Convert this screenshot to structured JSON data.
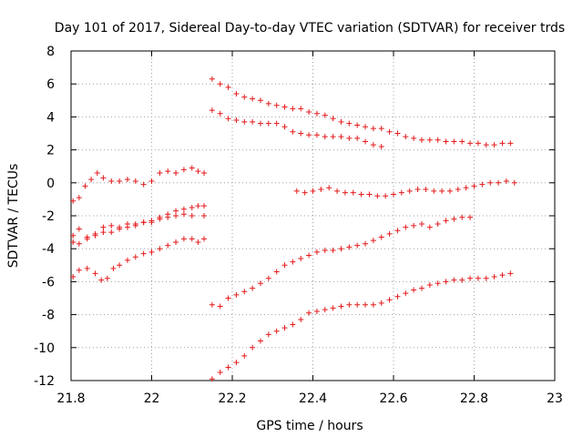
{
  "chart_data": {
    "type": "scatter",
    "title": "Day 101 of 2017, Sidereal Day-to-day VTEC variation (SDTVAR) for receiver trds",
    "xlabel": "GPS time / hours",
    "ylabel": "SDTVAR / TECUs",
    "xlim": [
      21.8,
      23.0
    ],
    "ylim": [
      -12,
      8
    ],
    "xticks": [
      21.8,
      22.0,
      22.2,
      22.4,
      22.6,
      22.8,
      23.0
    ],
    "xtick_labels": [
      "21.8",
      "22",
      "22.2",
      "22.4",
      "22.6",
      "22.8",
      "23"
    ],
    "yticks": [
      -12,
      -10,
      -8,
      -6,
      -4,
      -2,
      0,
      2,
      4,
      6,
      8
    ],
    "ytick_labels": [
      "-12",
      "-10",
      "-8",
      "-6",
      "-4",
      "-2",
      "0",
      "2",
      "4",
      "6",
      "8"
    ],
    "grid": true,
    "marker": "+",
    "color": "#e41a1c",
    "series": [
      {
        "name": "s1",
        "points": [
          [
            21.805,
            -1.1
          ],
          [
            21.82,
            -0.9
          ],
          [
            21.835,
            -0.2
          ],
          [
            21.85,
            0.2
          ],
          [
            21.865,
            0.6
          ],
          [
            21.88,
            0.3
          ],
          [
            21.9,
            0.1
          ],
          [
            21.92,
            0.1
          ],
          [
            21.94,
            0.2
          ],
          [
            21.96,
            0.1
          ],
          [
            21.98,
            -0.1
          ],
          [
            22.0,
            0.1
          ],
          [
            22.02,
            0.6
          ],
          [
            22.04,
            0.7
          ],
          [
            22.06,
            0.6
          ],
          [
            22.08,
            0.8
          ],
          [
            22.1,
            0.9
          ],
          [
            22.115,
            0.7
          ],
          [
            22.13,
            0.6
          ]
        ]
      },
      {
        "name": "s2",
        "points": [
          [
            21.805,
            -3.2
          ],
          [
            21.82,
            -2.8
          ],
          [
            21.84,
            -3.3
          ],
          [
            21.86,
            -3.1
          ],
          [
            21.88,
            -2.7
          ],
          [
            21.9,
            -2.6
          ],
          [
            21.92,
            -2.7
          ],
          [
            21.94,
            -2.5
          ],
          [
            21.96,
            -2.6
          ],
          [
            21.98,
            -2.4
          ],
          [
            22.0,
            -2.3
          ],
          [
            22.02,
            -2.2
          ],
          [
            22.04,
            -2.1
          ],
          [
            22.06,
            -2.0
          ],
          [
            22.08,
            -1.9
          ],
          [
            22.1,
            -2.0
          ],
          [
            22.13,
            -2.0
          ]
        ]
      },
      {
        "name": "s3",
        "points": [
          [
            21.805,
            -3.6
          ],
          [
            21.82,
            -3.7
          ],
          [
            21.84,
            -3.4
          ],
          [
            21.86,
            -3.2
          ],
          [
            21.88,
            -3.0
          ],
          [
            21.9,
            -3.0
          ],
          [
            21.92,
            -2.8
          ],
          [
            21.94,
            -2.7
          ],
          [
            21.96,
            -2.5
          ],
          [
            21.98,
            -2.4
          ],
          [
            22.0,
            -2.4
          ],
          [
            22.02,
            -2.1
          ],
          [
            22.04,
            -1.9
          ],
          [
            22.06,
            -1.7
          ],
          [
            22.08,
            -1.6
          ],
          [
            22.1,
            -1.5
          ],
          [
            22.115,
            -1.4
          ],
          [
            22.13,
            -1.4
          ]
        ]
      },
      {
        "name": "s4",
        "points": [
          [
            21.805,
            -5.7
          ],
          [
            21.82,
            -5.3
          ],
          [
            21.84,
            -5.2
          ],
          [
            21.86,
            -5.5
          ],
          [
            21.875,
            -5.9
          ],
          [
            21.89,
            -5.8
          ],
          [
            21.905,
            -5.2
          ],
          [
            21.92,
            -5.0
          ],
          [
            21.94,
            -4.7
          ],
          [
            21.96,
            -4.5
          ],
          [
            21.98,
            -4.3
          ],
          [
            22.0,
            -4.2
          ],
          [
            22.02,
            -4.0
          ],
          [
            22.04,
            -3.8
          ],
          [
            22.06,
            -3.6
          ],
          [
            22.08,
            -3.4
          ],
          [
            22.1,
            -3.4
          ],
          [
            22.115,
            -3.6
          ],
          [
            22.13,
            -3.4
          ]
        ]
      },
      {
        "name": "s5",
        "points": [
          [
            22.15,
            6.3
          ],
          [
            22.17,
            6.0
          ],
          [
            22.19,
            5.8
          ],
          [
            22.21,
            5.4
          ],
          [
            22.23,
            5.2
          ],
          [
            22.25,
            5.1
          ],
          [
            22.27,
            5.0
          ],
          [
            22.29,
            4.8
          ],
          [
            22.31,
            4.7
          ],
          [
            22.33,
            4.6
          ],
          [
            22.35,
            4.5
          ],
          [
            22.37,
            4.5
          ],
          [
            22.39,
            4.3
          ],
          [
            22.41,
            4.2
          ],
          [
            22.43,
            4.1
          ],
          [
            22.45,
            3.9
          ],
          [
            22.47,
            3.7
          ],
          [
            22.49,
            3.6
          ],
          [
            22.51,
            3.5
          ],
          [
            22.53,
            3.4
          ],
          [
            22.55,
            3.3
          ],
          [
            22.57,
            3.3
          ],
          [
            22.59,
            3.1
          ],
          [
            22.61,
            3.0
          ],
          [
            22.63,
            2.8
          ],
          [
            22.65,
            2.7
          ],
          [
            22.67,
            2.6
          ],
          [
            22.69,
            2.6
          ],
          [
            22.71,
            2.6
          ],
          [
            22.73,
            2.5
          ],
          [
            22.75,
            2.5
          ],
          [
            22.77,
            2.5
          ],
          [
            22.79,
            2.4
          ],
          [
            22.81,
            2.4
          ],
          [
            22.83,
            2.3
          ],
          [
            22.85,
            2.3
          ],
          [
            22.87,
            2.4
          ],
          [
            22.89,
            2.4
          ]
        ]
      },
      {
        "name": "s6",
        "points": [
          [
            22.15,
            4.4
          ],
          [
            22.17,
            4.2
          ],
          [
            22.19,
            3.9
          ],
          [
            22.21,
            3.8
          ],
          [
            22.23,
            3.7
          ],
          [
            22.25,
            3.7
          ],
          [
            22.27,
            3.6
          ],
          [
            22.29,
            3.6
          ],
          [
            22.31,
            3.6
          ],
          [
            22.33,
            3.4
          ],
          [
            22.35,
            3.1
          ],
          [
            22.37,
            3.0
          ],
          [
            22.39,
            2.9
          ],
          [
            22.41,
            2.9
          ],
          [
            22.43,
            2.8
          ],
          [
            22.45,
            2.8
          ],
          [
            22.47,
            2.8
          ],
          [
            22.49,
            2.7
          ],
          [
            22.51,
            2.7
          ],
          [
            22.53,
            2.5
          ],
          [
            22.55,
            2.3
          ],
          [
            22.57,
            2.2
          ]
        ]
      },
      {
        "name": "s7",
        "points": [
          [
            22.36,
            -0.5
          ],
          [
            22.38,
            -0.6
          ],
          [
            22.4,
            -0.5
          ],
          [
            22.42,
            -0.4
          ],
          [
            22.44,
            -0.3
          ],
          [
            22.46,
            -0.5
          ],
          [
            22.48,
            -0.6
          ],
          [
            22.5,
            -0.6
          ],
          [
            22.52,
            -0.7
          ],
          [
            22.54,
            -0.7
          ],
          [
            22.56,
            -0.8
          ],
          [
            22.58,
            -0.8
          ],
          [
            22.6,
            -0.7
          ],
          [
            22.62,
            -0.6
          ],
          [
            22.64,
            -0.5
          ],
          [
            22.66,
            -0.4
          ],
          [
            22.68,
            -0.4
          ],
          [
            22.7,
            -0.5
          ],
          [
            22.72,
            -0.5
          ],
          [
            22.74,
            -0.5
          ],
          [
            22.76,
            -0.4
          ],
          [
            22.78,
            -0.3
          ],
          [
            22.8,
            -0.2
          ],
          [
            22.82,
            -0.1
          ],
          [
            22.84,
            0.0
          ],
          [
            22.86,
            0.0
          ],
          [
            22.88,
            0.1
          ],
          [
            22.9,
            0.0
          ]
        ]
      },
      {
        "name": "s8",
        "points": [
          [
            22.15,
            -7.4
          ],
          [
            22.17,
            -7.5
          ],
          [
            22.19,
            -7.0
          ],
          [
            22.21,
            -6.8
          ],
          [
            22.23,
            -6.6
          ],
          [
            22.25,
            -6.4
          ],
          [
            22.27,
            -6.1
          ],
          [
            22.29,
            -5.8
          ],
          [
            22.31,
            -5.4
          ],
          [
            22.33,
            -5.0
          ],
          [
            22.35,
            -4.8
          ],
          [
            22.37,
            -4.6
          ],
          [
            22.39,
            -4.4
          ],
          [
            22.41,
            -4.2
          ],
          [
            22.43,
            -4.1
          ],
          [
            22.45,
            -4.1
          ],
          [
            22.47,
            -4.0
          ],
          [
            22.49,
            -3.9
          ],
          [
            22.51,
            -3.8
          ],
          [
            22.53,
            -3.7
          ],
          [
            22.55,
            -3.5
          ],
          [
            22.57,
            -3.3
          ],
          [
            22.59,
            -3.1
          ],
          [
            22.61,
            -2.9
          ],
          [
            22.63,
            -2.7
          ],
          [
            22.65,
            -2.6
          ],
          [
            22.67,
            -2.5
          ],
          [
            22.69,
            -2.7
          ],
          [
            22.71,
            -2.5
          ],
          [
            22.73,
            -2.3
          ],
          [
            22.75,
            -2.2
          ],
          [
            22.77,
            -2.1
          ],
          [
            22.79,
            -2.1
          ]
        ]
      },
      {
        "name": "s9",
        "points": [
          [
            22.15,
            -11.9
          ],
          [
            22.17,
            -11.5
          ],
          [
            22.19,
            -11.2
          ],
          [
            22.21,
            -10.9
          ],
          [
            22.23,
            -10.5
          ],
          [
            22.25,
            -10.0
          ],
          [
            22.27,
            -9.6
          ],
          [
            22.29,
            -9.2
          ],
          [
            22.31,
            -9.0
          ],
          [
            22.33,
            -8.8
          ],
          [
            22.35,
            -8.6
          ],
          [
            22.37,
            -8.3
          ],
          [
            22.39,
            -7.9
          ],
          [
            22.41,
            -7.8
          ],
          [
            22.43,
            -7.7
          ],
          [
            22.45,
            -7.6
          ],
          [
            22.47,
            -7.5
          ],
          [
            22.49,
            -7.4
          ],
          [
            22.51,
            -7.4
          ],
          [
            22.53,
            -7.4
          ],
          [
            22.55,
            -7.4
          ],
          [
            22.57,
            -7.3
          ],
          [
            22.59,
            -7.1
          ],
          [
            22.61,
            -6.9
          ],
          [
            22.63,
            -6.7
          ],
          [
            22.65,
            -6.5
          ],
          [
            22.67,
            -6.4
          ],
          [
            22.69,
            -6.2
          ],
          [
            22.71,
            -6.1
          ],
          [
            22.73,
            -6.0
          ],
          [
            22.75,
            -5.9
          ],
          [
            22.77,
            -5.9
          ],
          [
            22.79,
            -5.8
          ],
          [
            22.81,
            -5.8
          ],
          [
            22.83,
            -5.8
          ],
          [
            22.85,
            -5.7
          ],
          [
            22.87,
            -5.6
          ],
          [
            22.89,
            -5.5
          ]
        ]
      }
    ]
  }
}
